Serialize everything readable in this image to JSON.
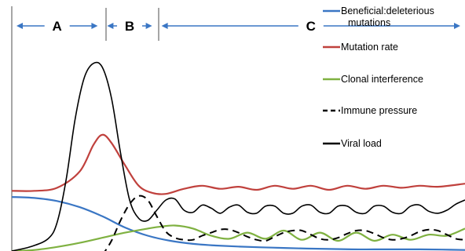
{
  "chart_data": {
    "type": "line",
    "title": "",
    "xlabel": "",
    "ylabel": "",
    "xlim": [
      0,
      100
    ],
    "ylim": [
      0,
      100
    ],
    "grid": false,
    "axes": "left y-axis line only, no ticks",
    "legend_placement": "top-right",
    "regions": [
      {
        "label": "A",
        "start": 0,
        "end": 20
      },
      {
        "label": "B",
        "start": 20,
        "end": 32
      },
      {
        "label": "C",
        "start": 32,
        "end": 100
      }
    ],
    "series": [
      {
        "name": "Beneficial:deleterious mutations",
        "color": "#3a76c4",
        "dash": "solid",
        "x": [
          0,
          5,
          10,
          15,
          20,
          25,
          30,
          35,
          40,
          45,
          50,
          55,
          60,
          65,
          70,
          75,
          80,
          85,
          90,
          95,
          100
        ],
        "y": [
          26.5,
          26,
          24.5,
          21.5,
          17,
          11.5,
          7.5,
          5,
          3.5,
          2.7,
          2.2,
          1.8,
          1.5,
          1.2,
          1,
          0.8,
          0.8,
          0.8,
          0.8,
          0.7,
          0.5
        ]
      },
      {
        "name": "Mutation rate",
        "color": "#c0413d",
        "dash": "solid",
        "x": [
          0,
          5,
          10,
          15,
          18,
          20,
          22,
          25,
          28,
          31,
          34,
          38,
          42,
          46,
          50,
          54,
          58,
          62,
          66,
          70,
          74,
          78,
          82,
          86,
          90,
          94,
          100
        ],
        "y": [
          29.5,
          29.5,
          31,
          39,
          52,
          57,
          53,
          42,
          32,
          28.5,
          28,
          30.5,
          32,
          30.5,
          31.5,
          30,
          32,
          30.5,
          32,
          30,
          32,
          30.5,
          32,
          31,
          32,
          31.5,
          33
        ]
      },
      {
        "name": "Clonal interference",
        "color": "#7fb141",
        "dash": "solid",
        "x": [
          0,
          5,
          10,
          15,
          20,
          25,
          30,
          33,
          36,
          40,
          44,
          48,
          52,
          56,
          60,
          64,
          68,
          72,
          76,
          80,
          84,
          88,
          92,
          96,
          100
        ],
        "y": [
          0,
          0.5,
          2,
          4,
          6.5,
          9,
          11,
          12,
          12.5,
          11,
          7.5,
          6,
          9,
          6,
          10,
          5.5,
          9,
          5,
          9,
          5,
          8,
          5.5,
          8,
          7.5,
          11
        ]
      },
      {
        "name": "Immune pressure",
        "color": "#000000",
        "dash": "dashed",
        "x": [
          20,
          22,
          24,
          26,
          28,
          30,
          32,
          34,
          36,
          38,
          40,
          42,
          44,
          46,
          48,
          50,
          52,
          54,
          56,
          58,
          60,
          62,
          64,
          66,
          68,
          70,
          72,
          74,
          76,
          78,
          80,
          82,
          84,
          86,
          88,
          90,
          92,
          94,
          96,
          98,
          100
        ],
        "y": [
          -2,
          5,
          15,
          23,
          27,
          25,
          17,
          9.5,
          6.5,
          5.5,
          5.5,
          7.5,
          9,
          10.5,
          10.5,
          9,
          7,
          5.5,
          5,
          7,
          9,
          10,
          10,
          8,
          6,
          5.5,
          6.5,
          8.5,
          10,
          10,
          8.5,
          6.5,
          5.5,
          6,
          7.5,
          9.5,
          10.5,
          10,
          8,
          6,
          5.5
        ]
      },
      {
        "name": "Viral load",
        "color": "#000000",
        "dash": "solid",
        "x": [
          0,
          4,
          8,
          10,
          12,
          14,
          16,
          18,
          20,
          22,
          24,
          26,
          28,
          30,
          32,
          34,
          36,
          38,
          40,
          42,
          44,
          46,
          48,
          50,
          52,
          54,
          56,
          58,
          60,
          62,
          64,
          66,
          68,
          70,
          72,
          74,
          76,
          78,
          80,
          82,
          84,
          86,
          88,
          90,
          92,
          94,
          96,
          98,
          100
        ],
        "y": [
          0,
          2,
          6,
          14,
          35,
          65,
          85,
          92,
          90,
          75,
          48,
          25,
          16,
          15,
          20,
          25,
          25.5,
          20,
          19,
          22.5,
          21,
          18.5,
          21.5,
          22.5,
          19,
          18.5,
          22,
          22,
          18.5,
          18.5,
          22,
          22.5,
          19,
          18.5,
          22,
          22,
          19,
          18.5,
          22,
          22,
          19,
          18.5,
          22,
          22.5,
          19.5,
          18.5,
          20,
          23,
          25
        ]
      }
    ]
  }
}
